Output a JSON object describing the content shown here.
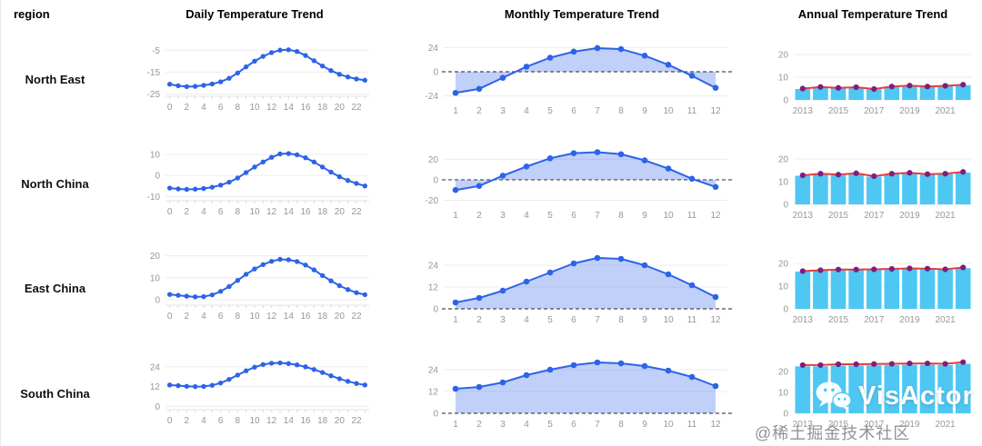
{
  "header": {
    "region": "region",
    "daily": "Daily Temperature Trend",
    "monthly": "Monthly Temperature Trend",
    "annual": "Annual Temperature Trend"
  },
  "regions": [
    "North East",
    "North China",
    "East China",
    "South China"
  ],
  "watermark": {
    "logo_text": "VisActor",
    "credit_text": "@稀土掘金技术社区",
    "icon": "wechat-icon"
  },
  "style": {
    "line_color": "#2d63e8",
    "area_fill": "rgba(45,99,232,0.30)",
    "bar_color": "#4ec7f3",
    "annual_line_color": "#e83c3c",
    "annual_dot_color": "#7d1f7d",
    "axis_text_color": "#979797",
    "grid_color": "#ececec",
    "zero_line_color": "#4a4a4a",
    "baseline_color": "#e3e3e3",
    "header_text_color": "#000000"
  },
  "chart_data": [
    {
      "region": "North East",
      "slot": "daily",
      "title": "Daily Temperature Trend",
      "type": "line",
      "x": [
        0,
        1,
        2,
        3,
        4,
        5,
        6,
        7,
        8,
        9,
        10,
        11,
        12,
        13,
        14,
        15,
        16,
        17,
        18,
        19,
        20,
        21,
        22,
        23
      ],
      "values": [
        -20.5,
        -21.2,
        -21.6,
        -21.5,
        -21,
        -20.4,
        -19.4,
        -17.8,
        -15.4,
        -12.6,
        -10,
        -7.8,
        -6.1,
        -5,
        -4.8,
        -5.6,
        -7.4,
        -9.8,
        -12.2,
        -14.3,
        -16,
        -17.2,
        -18.1,
        -18.7
      ],
      "yticks": [
        -5,
        -15,
        -25
      ],
      "ylim": [
        -26,
        -2
      ],
      "xlabel_every": 2,
      "zero_dashed": false
    },
    {
      "region": "North East",
      "slot": "monthly",
      "title": "Monthly Temperature Trend",
      "type": "area",
      "x": [
        1,
        2,
        3,
        4,
        5,
        6,
        7,
        8,
        9,
        10,
        11,
        12
      ],
      "values": [
        -21,
        -17,
        -6,
        5,
        14,
        20,
        23.5,
        22.5,
        16,
        7,
        -4,
        -16
      ],
      "yticks": [
        24,
        0,
        -24
      ],
      "ylim": [
        -28,
        28
      ],
      "xlabel_every": 1,
      "zero_dashed": true
    },
    {
      "region": "North East",
      "slot": "annual",
      "title": "Annual Temperature Trend",
      "type": "bar-line",
      "x": [
        2013,
        2014,
        2015,
        2016,
        2017,
        2018,
        2019,
        2020,
        2021,
        2022
      ],
      "bars": [
        4.8,
        5.6,
        5.2,
        5.5,
        4.7,
        5.8,
        6.2,
        5.8,
        6.1,
        6.5
      ],
      "line": [
        5,
        5.7,
        5.3,
        5.6,
        4.8,
        5.9,
        6.3,
        5.9,
        6.2,
        6.7
      ],
      "yticks": [
        20,
        10,
        0
      ],
      "ylim": [
        0,
        24
      ],
      "xlabel_every": 2,
      "zero_dashed": false
    },
    {
      "region": "North China",
      "slot": "daily",
      "title": "Daily Temperature Trend",
      "type": "line",
      "x": [
        0,
        1,
        2,
        3,
        4,
        5,
        6,
        7,
        8,
        9,
        10,
        11,
        12,
        13,
        14,
        15,
        16,
        17,
        18,
        19,
        20,
        21,
        22,
        23
      ],
      "values": [
        -6,
        -6.4,
        -6.6,
        -6.5,
        -6.2,
        -5.6,
        -4.6,
        -3.2,
        -1.2,
        1.4,
        4,
        6.4,
        8.6,
        10.2,
        10.4,
        9.8,
        8.4,
        6.4,
        4,
        1.6,
        -0.6,
        -2.4,
        -3.8,
        -5
      ],
      "yticks": [
        10,
        0,
        -10
      ],
      "ylim": [
        -12,
        13
      ],
      "xlabel_every": 2,
      "zero_dashed": false
    },
    {
      "region": "North China",
      "slot": "monthly",
      "title": "Monthly Temperature Trend",
      "type": "area",
      "x": [
        1,
        2,
        3,
        4,
        5,
        6,
        7,
        8,
        9,
        10,
        11,
        12
      ],
      "values": [
        -10,
        -6,
        4,
        13,
        21,
        26,
        27,
        25,
        19,
        11,
        1,
        -7
      ],
      "yticks": [
        20,
        0,
        -20
      ],
      "ylim": [
        -24,
        31
      ],
      "xlabel_every": 1,
      "zero_dashed": true
    },
    {
      "region": "North China",
      "slot": "annual",
      "title": "Annual Temperature Trend",
      "type": "bar-line",
      "x": [
        2013,
        2014,
        2015,
        2016,
        2017,
        2018,
        2019,
        2020,
        2021,
        2022
      ],
      "bars": [
        12.6,
        13.3,
        12.9,
        13.5,
        12.2,
        13.3,
        13.7,
        13.1,
        13.3,
        14
      ],
      "line": [
        12.8,
        13.5,
        13.1,
        13.7,
        12.4,
        13.5,
        13.9,
        13.3,
        13.5,
        14.3
      ],
      "yticks": [
        20,
        10,
        0
      ],
      "ylim": [
        0,
        24
      ],
      "xlabel_every": 2,
      "zero_dashed": false
    },
    {
      "region": "East China",
      "slot": "daily",
      "title": "Daily Temperature Trend",
      "type": "line",
      "x": [
        0,
        1,
        2,
        3,
        4,
        5,
        6,
        7,
        8,
        9,
        10,
        11,
        12,
        13,
        14,
        15,
        16,
        17,
        18,
        19,
        20,
        21,
        22,
        23
      ],
      "values": [
        2.4,
        2,
        1.6,
        1.3,
        1.4,
        2.2,
        3.8,
        6,
        8.8,
        11.6,
        14,
        16,
        17.5,
        18.4,
        18.2,
        17.4,
        15.8,
        13.6,
        11,
        8.6,
        6.4,
        4.6,
        3.2,
        2.3
      ],
      "yticks": [
        20,
        10,
        0
      ],
      "ylim": [
        -2.5,
        21.5
      ],
      "xlabel_every": 2,
      "zero_dashed": false
    },
    {
      "region": "East China",
      "slot": "monthly",
      "title": "Monthly Temperature Trend",
      "type": "area",
      "x": [
        1,
        2,
        3,
        4,
        5,
        6,
        7,
        8,
        9,
        10,
        11,
        12
      ],
      "values": [
        3.5,
        6,
        10,
        15,
        20,
        25,
        28,
        27.5,
        24,
        19,
        13,
        6.5
      ],
      "yticks": [
        24,
        12,
        0
      ],
      "ylim": [
        0,
        31
      ],
      "xlabel_every": 1,
      "zero_dashed": true
    },
    {
      "region": "East China",
      "slot": "annual",
      "title": "Annual Temperature Trend",
      "type": "bar-line",
      "x": [
        2013,
        2014,
        2015,
        2016,
        2017,
        2018,
        2019,
        2020,
        2021,
        2022
      ],
      "bars": [
        16.4,
        16.8,
        17.1,
        17.1,
        17.2,
        17.4,
        17.6,
        17.5,
        17.2,
        17.9
      ],
      "line": [
        16.6,
        17,
        17.3,
        17.3,
        17.4,
        17.6,
        17.8,
        17.7,
        17.4,
        18.2
      ],
      "yticks": [
        20,
        10,
        0
      ],
      "ylim": [
        0,
        24
      ],
      "xlabel_every": 2,
      "zero_dashed": false
    },
    {
      "region": "South China",
      "slot": "daily",
      "title": "Daily Temperature Trend",
      "type": "line",
      "x": [
        0,
        1,
        2,
        3,
        4,
        5,
        6,
        7,
        8,
        9,
        10,
        11,
        12,
        13,
        14,
        15,
        16,
        17,
        18,
        19,
        20,
        21,
        22,
        23
      ],
      "values": [
        13,
        12.6,
        12.2,
        12,
        12.1,
        12.8,
        14.2,
        16.4,
        19,
        21.6,
        23.8,
        25.4,
        26.2,
        26.4,
        26,
        25.2,
        24,
        22.4,
        20.6,
        18.6,
        16.8,
        15.2,
        13.9,
        13
      ],
      "yticks": [
        24,
        12,
        0
      ],
      "ylim": [
        -2,
        30
      ],
      "xlabel_every": 2,
      "zero_dashed": false
    },
    {
      "region": "South China",
      "slot": "monthly",
      "title": "Monthly Temperature Trend",
      "type": "area",
      "x": [
        1,
        2,
        3,
        4,
        5,
        6,
        7,
        8,
        9,
        10,
        11,
        12
      ],
      "values": [
        13.5,
        14.5,
        17,
        21,
        24,
        26.5,
        28,
        27.5,
        26,
        23.5,
        20,
        15
      ],
      "yticks": [
        24,
        12,
        0
      ],
      "ylim": [
        0,
        31
      ],
      "xlabel_every": 1,
      "zero_dashed": true
    },
    {
      "region": "South China",
      "slot": "annual",
      "title": "Annual Temperature Trend",
      "type": "bar-line",
      "x": [
        2013,
        2014,
        2015,
        2016,
        2017,
        2018,
        2019,
        2020,
        2021,
        2022
      ],
      "bars": [
        22.4,
        22.4,
        22.8,
        22.8,
        22.9,
        23,
        23.2,
        23.2,
        23,
        23.6
      ],
      "line": [
        23,
        23,
        23.4,
        23.4,
        23.5,
        23.6,
        23.8,
        23.8,
        23.6,
        24.4
      ],
      "yticks": [
        20,
        10,
        0
      ],
      "ylim": [
        0,
        26
      ],
      "xlabel_every": 2,
      "zero_dashed": false
    }
  ]
}
